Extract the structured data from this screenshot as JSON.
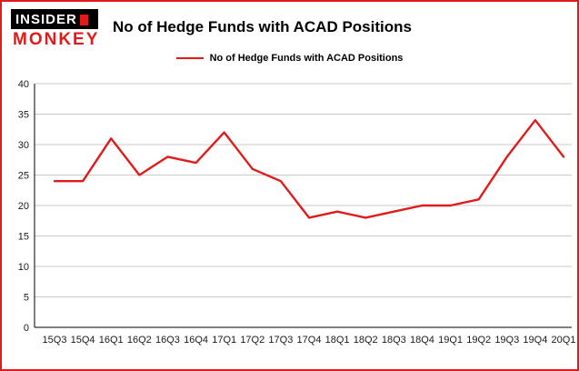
{
  "logo": {
    "line1": "INSIDER",
    "line2": "MONKEY"
  },
  "header": {
    "title": "No of Hedge Funds with ACAD Positions"
  },
  "legend": {
    "label": "No of Hedge Funds with ACAD Positions"
  },
  "colors": {
    "line": "#e01b1b",
    "border": "#e01b1b",
    "grid": "#c9c9c9",
    "axis": "#000000",
    "logo_red": "#e01b1b",
    "logo_black": "#000000"
  },
  "chart_data": {
    "type": "line",
    "title": "No of Hedge Funds with ACAD Positions",
    "categories": [
      "15Q3",
      "15Q4",
      "16Q1",
      "16Q2",
      "16Q3",
      "16Q4",
      "17Q1",
      "17Q2",
      "17Q3",
      "17Q4",
      "18Q1",
      "18Q2",
      "18Q3",
      "18Q4",
      "19Q1",
      "19Q2",
      "19Q3",
      "19Q4",
      "20Q1"
    ],
    "values": [
      24,
      24,
      31,
      25,
      28,
      27,
      32,
      26,
      24,
      18,
      19,
      18,
      19,
      20,
      20,
      21,
      28,
      34,
      28
    ],
    "series_name": "No of Hedge Funds with ACAD Positions",
    "xlabel": "",
    "ylabel": "",
    "ylim": [
      0,
      40
    ],
    "yticks": [
      0,
      5,
      10,
      15,
      20,
      25,
      30,
      35,
      40
    ],
    "grid": true,
    "legend_position": "top"
  }
}
